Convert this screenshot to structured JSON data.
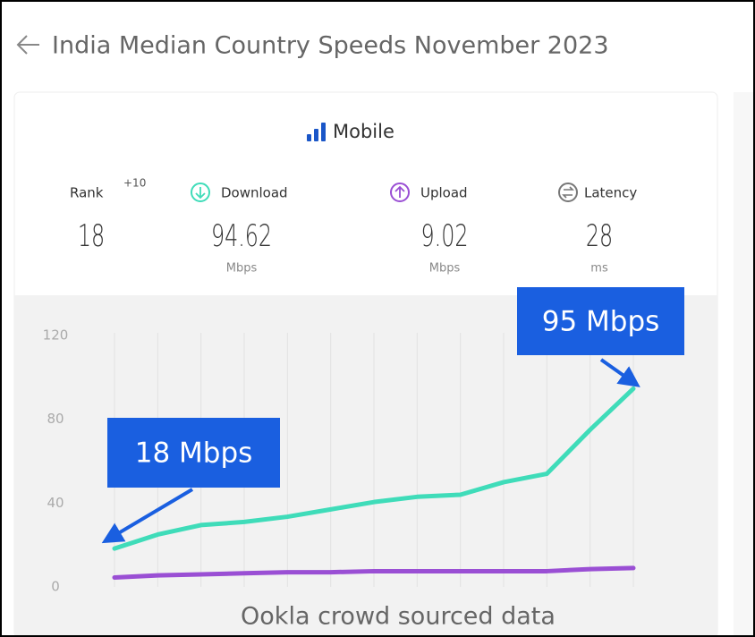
{
  "header": {
    "title": "India Median Country Speeds November 2023"
  },
  "card": {
    "heading": "Mobile",
    "stats": [
      {
        "label": "Rank",
        "value": 18,
        "change": "+10"
      },
      {
        "label": "Download",
        "value": 94.62,
        "unit": "Mbps"
      },
      {
        "label": "Upload",
        "value": 9.02,
        "unit": "Mbps"
      },
      {
        "label": "Latency",
        "value": 28,
        "unit": "ms"
      }
    ]
  },
  "chart_data": {
    "type": "line",
    "categories": [
      null,
      null,
      null,
      null,
      null,
      null,
      null,
      null,
      null,
      null,
      null,
      null,
      null
    ],
    "series": [
      {
        "color": "#3fdcb9",
        "values": [
          18.3,
          25,
          29.5,
          31,
          33.5,
          37,
          40.5,
          43,
          44,
          50,
          54,
          75,
          94.62
        ]
      },
      {
        "color": "#9a4fd4",
        "values": [
          4.5,
          5.5,
          6,
          6.5,
          7,
          7,
          7.5,
          7.5,
          7.5,
          7.5,
          7.5,
          8.5,
          9.02
        ]
      }
    ],
    "ylim": [
      0,
      120
    ],
    "yticks": [
      0,
      40,
      80,
      120
    ],
    "annotations": [
      {
        "text": "95 Mbps"
      },
      {
        "text": "18 Mbps"
      }
    ],
    "caption": "Ookla crowd sourced data"
  }
}
